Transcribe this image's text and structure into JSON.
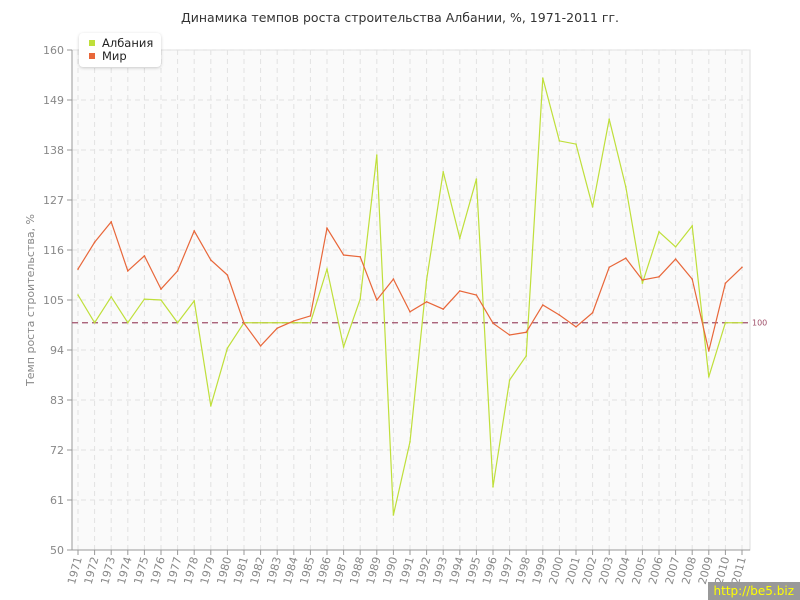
{
  "chart_data": {
    "type": "line",
    "title": "Динамика темпов роста строительства Албании, %, 1971-2011 гг.",
    "xlabel": "",
    "ylabel": "Темп роста строительства, %",
    "ylim": [
      50,
      160
    ],
    "yticks": [
      "50",
      "61",
      "72",
      "83",
      "94",
      "105",
      "116",
      "127",
      "138",
      "149",
      "160"
    ],
    "grid": true,
    "legend_position": "top-left",
    "reference_line": {
      "value": 100,
      "label": "100",
      "color": "#a0506a"
    },
    "x": [
      "1971",
      "1972",
      "1973",
      "1974",
      "1975",
      "1976",
      "1977",
      "1978",
      "1979",
      "1980",
      "1981",
      "1982",
      "1983",
      "1984",
      "1985",
      "1986",
      "1987",
      "1988",
      "1989",
      "1990",
      "1991",
      "1992",
      "1993",
      "1994",
      "1995",
      "1996",
      "1997",
      "1998",
      "1999",
      "2000",
      "2001",
      "2002",
      "2003",
      "2004",
      "2005",
      "2006",
      "2007",
      "2008",
      "2009",
      "2010",
      "2011"
    ],
    "series": [
      {
        "name": "Албания",
        "color": "#bfdf3a",
        "values": [
          106.1,
          100,
          105.7,
          100,
          105.2,
          105,
          100,
          104.8,
          81.7,
          94.4,
          100,
          100,
          100,
          100,
          100,
          111.8,
          94.7,
          105.2,
          136.9,
          57.7,
          73.8,
          109.4,
          133.2,
          118.6,
          131.6,
          63.9,
          87.4,
          92.7,
          153.8,
          140,
          139.3,
          125.5,
          144.8,
          129.9,
          108.7,
          120,
          116.7,
          121.3,
          88.1,
          100,
          100
        ]
      },
      {
        "name": "Мир",
        "color": "#e8673a",
        "values": [
          111.8,
          117.7,
          122.2,
          111.4,
          114.7,
          107.4,
          111.4,
          120.2,
          113.8,
          110.5,
          99.9,
          94.9,
          98.8,
          100.4,
          101.5,
          120.8,
          114.9,
          114.5,
          105,
          109.6,
          102.4,
          104.6,
          103,
          107,
          106.1,
          99.9,
          97.3,
          97.9,
          103.9,
          101.7,
          99.1,
          102.2,
          112.2,
          114.2,
          109.4,
          110.1,
          114,
          109.6,
          93.8,
          108.7,
          112.2
        ]
      }
    ]
  },
  "watermark": "http://be5.biz"
}
